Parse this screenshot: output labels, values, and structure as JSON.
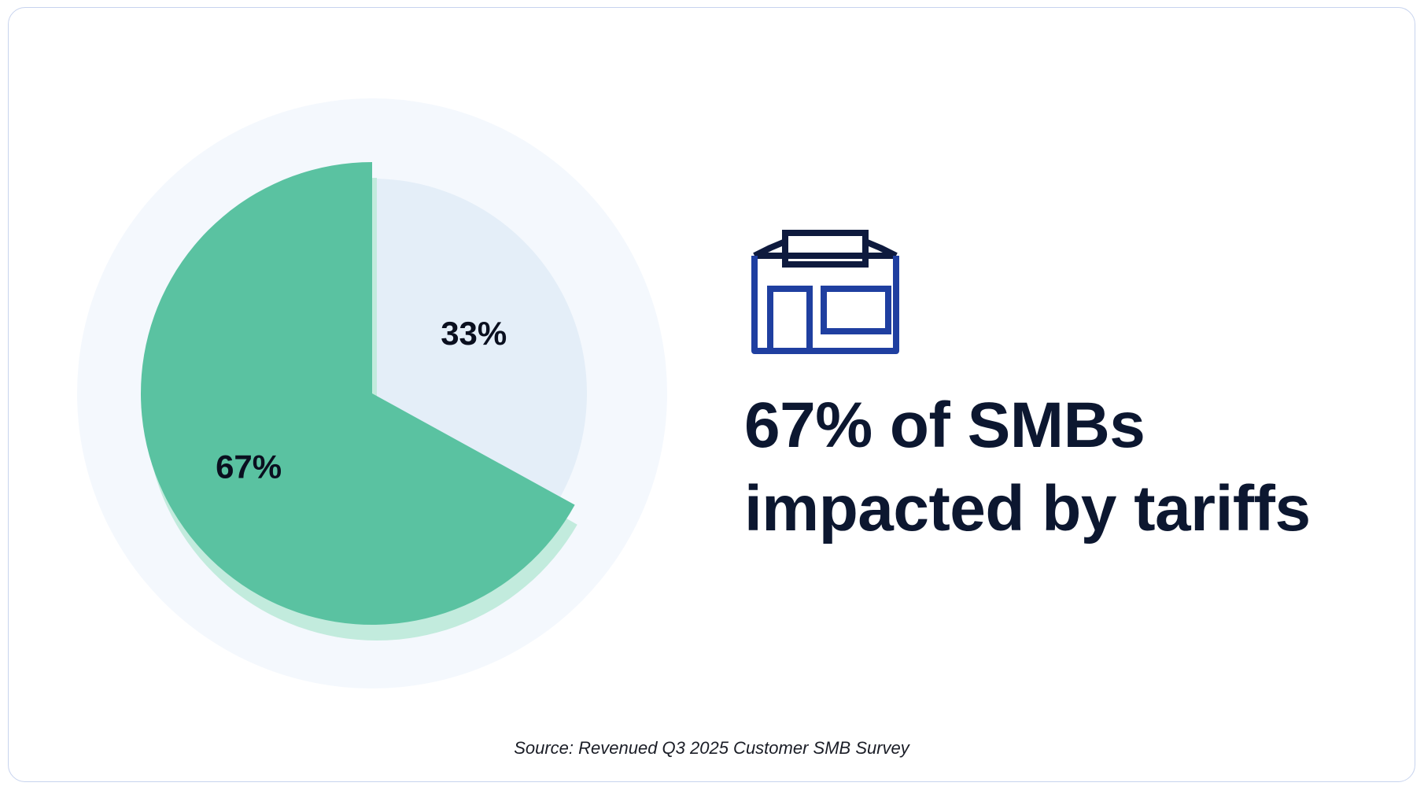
{
  "chart_data": {
    "type": "pie",
    "slices": [
      {
        "label": "67%",
        "value": 67,
        "color": "#5ac2a1"
      },
      {
        "label": "33%",
        "value": 33,
        "color": "#e4eef8"
      }
    ]
  },
  "headline": {
    "line1": "67% of SMBs",
    "line2": "impacted by tariffs"
  },
  "icon": {
    "name": "storefront-icon",
    "colors": {
      "dark": "#0e1a3e",
      "blue": "#1f3fa0"
    }
  },
  "source": "Source: Revenued Q3 2025 Customer SMB Survey",
  "colors": {
    "background_circle": "#f4f8fd",
    "card_border": "#c7d3ee",
    "shadow_green": "#c2ebdd",
    "text_dark": "#0c1730"
  }
}
